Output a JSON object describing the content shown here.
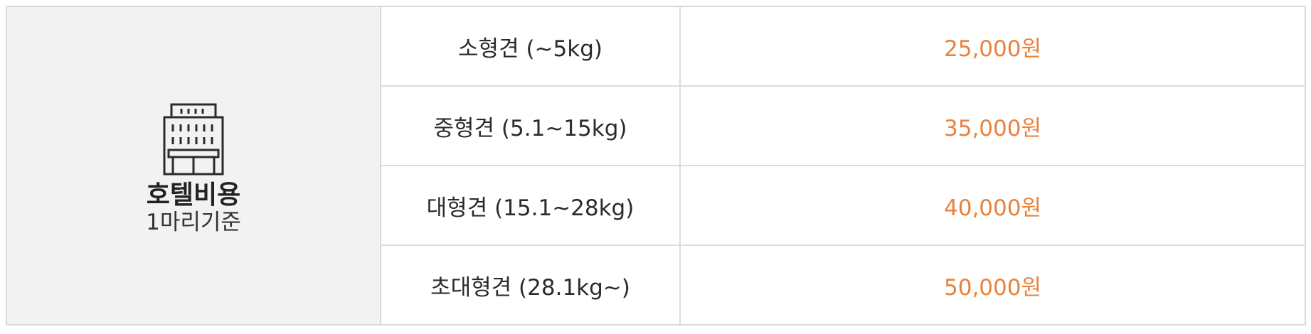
{
  "category": {
    "title": "호텔비용",
    "subtitle": "1마리기준",
    "icon": "building-icon"
  },
  "rows": [
    {
      "size": "소형견 (~5kg)",
      "price": "25,000원"
    },
    {
      "size": "중형견 (5.1~15kg)",
      "price": "35,000원"
    },
    {
      "size": "대형견 (15.1~28kg)",
      "price": "40,000원"
    },
    {
      "size": "초대형견 (28.1kg~)",
      "price": "50,000원"
    }
  ],
  "colors": {
    "price": "#e8823c",
    "category_background": "#f2f2f2",
    "border": "#d9d9d9"
  }
}
